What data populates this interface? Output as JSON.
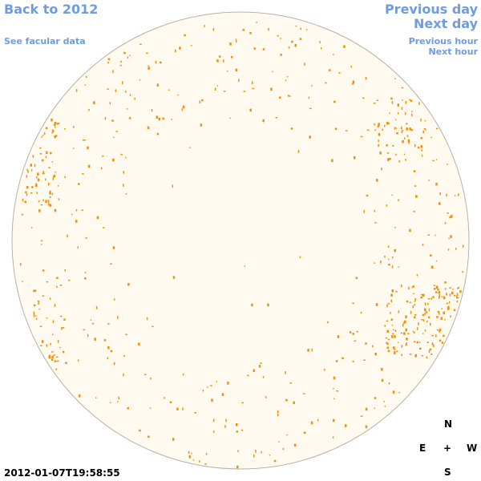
{
  "nav": {
    "back": "Back to 2012",
    "facular": "See facular data",
    "prev_day": "Previous day",
    "next_day": "Next day",
    "prev_hour": "Previous hour",
    "next_hour": "Next hour"
  },
  "timestamp": "2012-01-07T19:58:55",
  "compass": {
    "north": "N",
    "east": "E",
    "center": "+",
    "west": "W",
    "south": "S"
  }
}
